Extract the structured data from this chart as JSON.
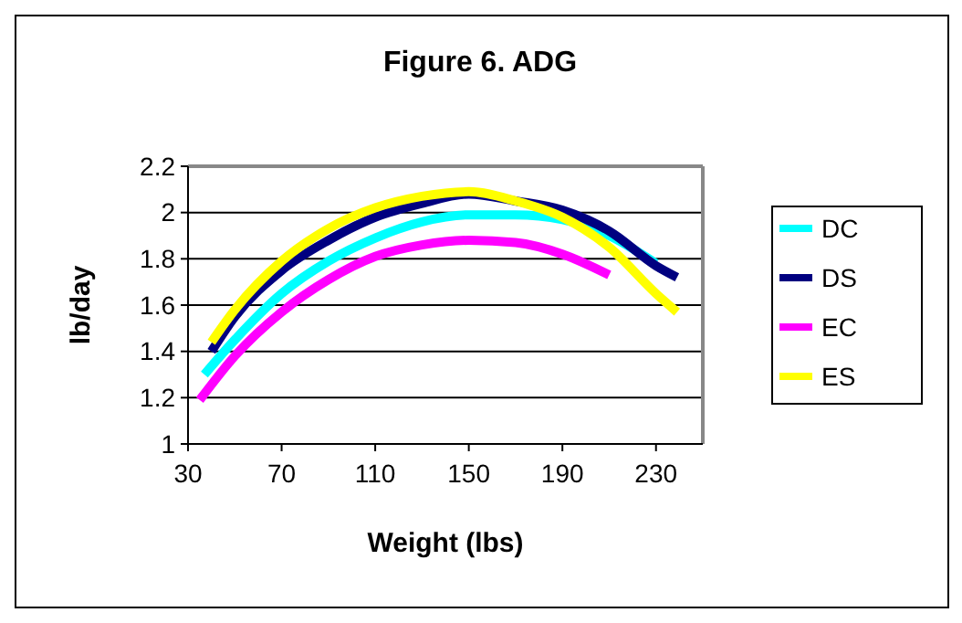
{
  "chart_data": {
    "type": "line",
    "title": "Figure 6.  ADG",
    "xlabel": "Weight (lbs)",
    "ylabel": "lb/day",
    "xlim": [
      30,
      250
    ],
    "xticks": [
      30,
      70,
      110,
      150,
      190,
      230
    ],
    "ylim": [
      1,
      2.2
    ],
    "yticks": [
      1,
      1.2,
      1.4,
      1.6,
      1.8,
      2,
      2.2
    ],
    "grid": "y",
    "legend": "right",
    "marker": "none",
    "line_style": "solid",
    "series": [
      {
        "name": "DC",
        "color": "#00ffff",
        "x": [
          37,
          50,
          70,
          90,
          110,
          130,
          150,
          170,
          190,
          210,
          230
        ],
        "values": [
          1.3,
          1.45,
          1.65,
          1.79,
          1.89,
          1.96,
          1.99,
          1.99,
          1.97,
          1.9,
          1.78
        ]
      },
      {
        "name": "DS",
        "color": "#000080",
        "x": [
          40,
          50,
          70,
          90,
          110,
          130,
          150,
          170,
          190,
          210,
          230,
          239
        ],
        "values": [
          1.4,
          1.55,
          1.75,
          1.88,
          1.98,
          2.04,
          2.08,
          2.05,
          2.01,
          1.92,
          1.77,
          1.72
        ]
      },
      {
        "name": "EC",
        "color": "#ff00ff",
        "x": [
          35,
          50,
          70,
          90,
          110,
          130,
          150,
          170,
          190,
          210
        ],
        "values": [
          1.19,
          1.38,
          1.57,
          1.71,
          1.81,
          1.86,
          1.88,
          1.87,
          1.82,
          1.73
        ]
      },
      {
        "name": "ES",
        "color": "#ffff00",
        "x": [
          40,
          50,
          70,
          90,
          110,
          130,
          150,
          170,
          190,
          210,
          230,
          239
        ],
        "values": [
          1.44,
          1.58,
          1.79,
          1.93,
          2.02,
          2.07,
          2.09,
          2.05,
          1.98,
          1.85,
          1.65,
          1.57
        ]
      }
    ]
  }
}
